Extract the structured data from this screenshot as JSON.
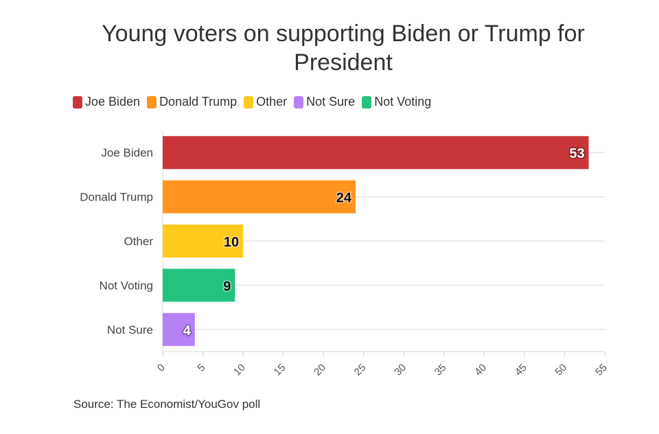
{
  "chart_data": {
    "type": "bar",
    "orientation": "horizontal",
    "title": "Young voters on supporting Biden or Trump for President",
    "categories": [
      "Joe Biden",
      "Donald Trump",
      "Other",
      "Not Voting",
      "Not Sure"
    ],
    "values": [
      53,
      24,
      10,
      9,
      4
    ],
    "colors": [
      "#c8363a",
      "#ff941f",
      "#ffc91d",
      "#23c27f",
      "#b681f4"
    ],
    "legend": [
      {
        "label": "Joe Biden",
        "color": "#c8363a"
      },
      {
        "label": "Donald Trump",
        "color": "#ff941f"
      },
      {
        "label": "Other",
        "color": "#ffc91d"
      },
      {
        "label": "Not Sure",
        "color": "#b681f4"
      },
      {
        "label": "Not Voting",
        "color": "#23c27f"
      }
    ],
    "legend_position": "top-left",
    "xlim": [
      0,
      55
    ],
    "xticks": [
      "0",
      "5",
      "10",
      "15",
      "20",
      "25",
      "30",
      "35",
      "40",
      "45",
      "50",
      "55"
    ],
    "grid": true,
    "xlabel": "",
    "ylabel": ""
  },
  "source": "Source: The Economist/YouGov poll"
}
